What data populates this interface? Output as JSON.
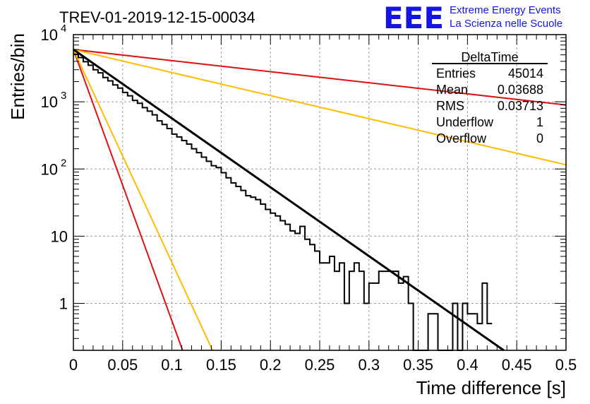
{
  "chart_data": {
    "type": "histogram",
    "title": "TREV-01-2019-12-15-00034",
    "xlabel": "Time difference [s]",
    "ylabel": "Entries/bin",
    "xlim": [
      0,
      0.5
    ],
    "ylim": [
      0.2,
      10000
    ],
    "log_y": true,
    "grid": true,
    "x_ticks": [
      "0",
      "0.05",
      "0.1",
      "0.15",
      "0.2",
      "0.25",
      "0.3",
      "0.35",
      "0.4",
      "0.45",
      "0.5"
    ],
    "y_ticks": [
      {
        "value": 10000,
        "label": "10",
        "exp": "4"
      },
      {
        "value": 1000,
        "label": "10",
        "exp": "3"
      },
      {
        "value": 100,
        "label": "10",
        "exp": "2"
      },
      {
        "value": 10,
        "label": "10",
        "exp": ""
      },
      {
        "value": 1,
        "label": "1",
        "exp": ""
      }
    ],
    "bin_width": 0.005,
    "counts": [
      5100,
      4550,
      3950,
      3500,
      3000,
      2700,
      2300,
      2050,
      1780,
      1600,
      1380,
      1230,
      1050,
      950,
      820,
      725,
      640,
      520,
      460,
      400,
      330,
      300,
      265,
      235,
      200,
      175,
      150,
      130,
      112,
      105,
      88,
      74,
      62,
      55,
      48,
      40,
      38,
      35,
      30,
      25,
      22,
      20,
      17,
      15,
      12,
      11,
      14,
      9,
      7.5,
      6,
      4,
      4,
      5,
      3,
      4,
      1,
      3,
      4,
      3,
      1,
      2,
      2,
      3,
      3,
      3,
      3,
      2,
      2.5,
      1,
      0,
      0,
      0,
      0.7,
      0.7,
      0,
      0,
      0,
      1,
      0,
      1,
      0.7,
      0.7,
      0.5,
      2,
      0.5
    ],
    "fits": [
      {
        "color": "#000000",
        "y0": 6000,
        "slope": -23.6
      },
      {
        "color": "#dd1111",
        "y0": 6000,
        "slope": -3.8
      },
      {
        "color": "#ffbb00",
        "y0": 6000,
        "slope": -7.9
      },
      {
        "color": "#dd1111",
        "y0": 6000,
        "slope": -93
      },
      {
        "color": "#ffbb00",
        "y0": 6000,
        "slope": -73
      }
    ],
    "stats": {
      "title": "DeltaTime",
      "rows": [
        {
          "label": "Entries",
          "value": "45014"
        },
        {
          "label": "Mean",
          "value": "0.03688"
        },
        {
          "label": "RMS",
          "value": "0.03713"
        },
        {
          "label": "Underflow",
          "value": "1"
        },
        {
          "label": "Overflow",
          "value": "0"
        }
      ]
    }
  },
  "logo": {
    "mark": "EEE",
    "line1": "Extreme Energy Events",
    "line2": "La Scienza nelle Scuole"
  }
}
